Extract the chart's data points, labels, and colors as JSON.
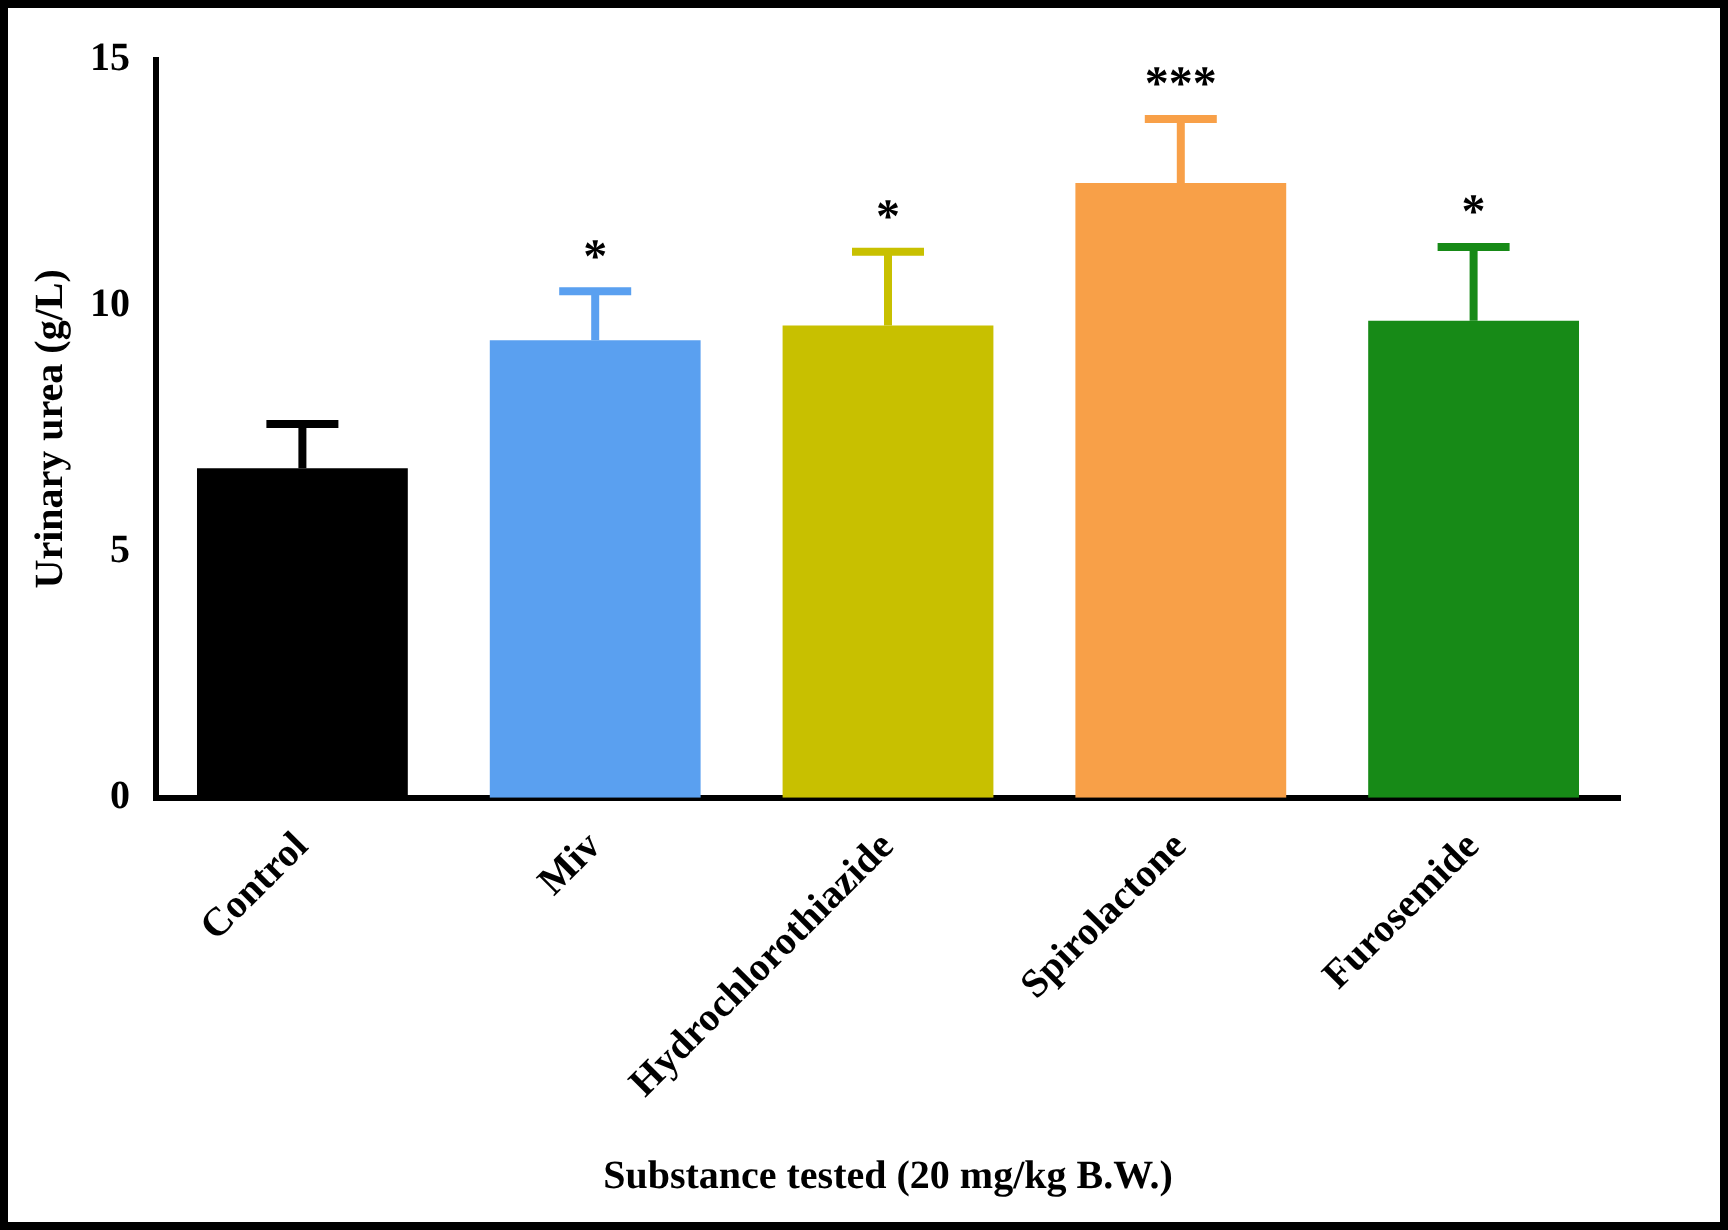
{
  "chart_data": {
    "type": "bar",
    "xlabel": "Substance tested (20 mg/kg B.W.)",
    "ylabel": "Urinary urea (g/L)",
    "categories": [
      "Control",
      "Miv",
      "Hydrochlorothiazide",
      "Spirolactone",
      "Furosemide"
    ],
    "values": [
      6.7,
      9.3,
      9.6,
      12.5,
      9.7
    ],
    "colors": [
      "#000000",
      "#5aa0f0",
      "#c8c000",
      "#f8a048",
      "#178a17"
    ],
    "errors": [
      [
        6.7,
        7.6
      ],
      [
        9.3,
        10.3
      ],
      [
        9.6,
        11.1
      ],
      [
        12.5,
        13.8
      ],
      [
        9.7,
        11.2
      ]
    ],
    "ylim": [
      0,
      15
    ],
    "yticks": [
      0,
      5,
      10,
      15
    ],
    "grid": false,
    "legend": false,
    "annotations": [
      {
        "text": "*",
        "x": "Miv",
        "y": 10.3
      },
      {
        "text": "*",
        "x": "Hydrochlorothiazide",
        "y": 11.1
      },
      {
        "text": "***",
        "x": "Spirolactone",
        "y": 13.8
      },
      {
        "text": "*",
        "x": "Furosemide",
        "y": 11.2
      }
    ]
  }
}
